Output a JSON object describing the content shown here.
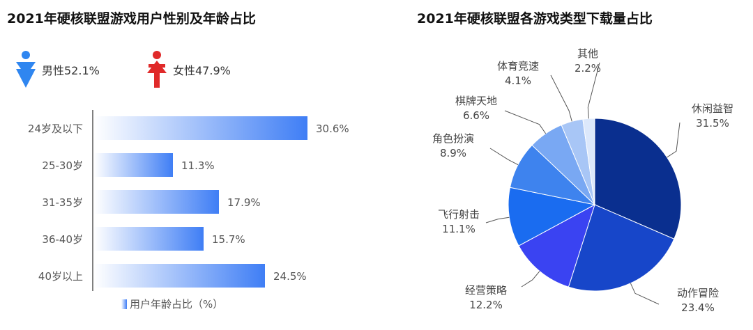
{
  "left_title": "2021年硬核联盟游戏用户性别及年龄占比",
  "right_title": "2021年硬核联盟各游戏类型下载量占比",
  "gender": {
    "male": {
      "label": "男性52.1%",
      "color": "#2f86f0",
      "icon": "male-person-icon"
    },
    "female": {
      "label": "女性47.9%",
      "color": "#e02a2a",
      "icon": "female-person-icon"
    }
  },
  "chart_data": [
    {
      "type": "bar",
      "orientation": "horizontal",
      "categories": [
        "24岁及以下",
        "25-30岁",
        "31-35岁",
        "36-40岁",
        "40岁以上"
      ],
      "values": [
        30.6,
        11.3,
        17.9,
        15.7,
        24.5
      ],
      "value_labels": [
        "30.6%",
        "11.3%",
        "17.9%",
        "15.7%",
        "24.5%"
      ],
      "legend": "用户年龄占比（%）",
      "xlim": [
        0,
        32
      ],
      "colors": {
        "start": "#ffffff",
        "end": "#3f7ef5"
      }
    },
    {
      "type": "pie",
      "slices": [
        {
          "name": "休闲益智",
          "label": "31.5%",
          "value": 31.5,
          "color": "#0a2f8f"
        },
        {
          "name": "动作冒险",
          "label": "23.4%",
          "value": 23.4,
          "color": "#1746c9"
        },
        {
          "name": "经营策略",
          "label": "12.2%",
          "value": 12.2,
          "color": "#3a43f2"
        },
        {
          "name": "飞行射击",
          "label": "11.1%",
          "value": 11.1,
          "color": "#1a6cf0"
        },
        {
          "name": "角色扮演",
          "label": "8.9%",
          "value": 8.9,
          "color": "#3e83ee"
        },
        {
          "name": "棋牌天地",
          "label": "6.6%",
          "value": 6.6,
          "color": "#79a8f3"
        },
        {
          "name": "体育竞速",
          "label": "4.1%",
          "value": 4.1,
          "color": "#a8c6f6"
        },
        {
          "name": "其他",
          "label": "2.2%",
          "value": 2.2,
          "color": "#dce8fb"
        }
      ]
    }
  ]
}
